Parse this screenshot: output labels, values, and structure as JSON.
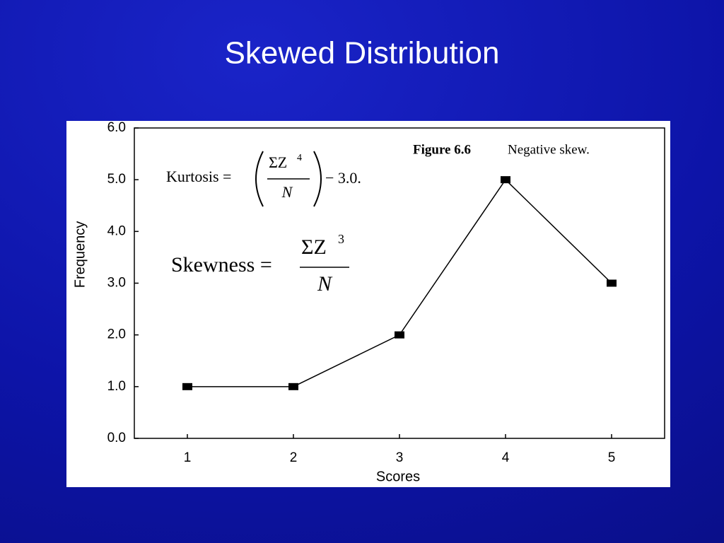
{
  "title": "Skewed Distribution",
  "chart_data": {
    "type": "line",
    "x": [
      1,
      2,
      3,
      4,
      5
    ],
    "values": [
      1,
      1,
      2,
      5,
      3
    ],
    "color": "#000000",
    "xlim": [
      0.5,
      5.5
    ],
    "xticks": [
      1,
      2,
      3,
      4,
      5
    ],
    "ylim": [
      0,
      6
    ],
    "yticks": [
      {
        "value": 0,
        "label": "0.0"
      },
      {
        "value": 1,
        "label": "1.0"
      },
      {
        "value": 2,
        "label": "2.0"
      },
      {
        "value": 3,
        "label": "3.0"
      },
      {
        "value": 4,
        "label": "4.0"
      },
      {
        "value": 5,
        "label": "5.0"
      },
      {
        "value": 6,
        "label": "6.0"
      }
    ],
    "x_label": "Scores",
    "y_label": "Frequency",
    "figure_label": "Figure 6.6",
    "figure_caption": "Negative skew.",
    "kurtosis": {
      "lhs": "Kurtosis =",
      "numerator": "ΣZ",
      "exponent": "4",
      "denominator": "N",
      "rhs": "− 3.0."
    },
    "skewness": {
      "lhs": "Skewness =",
      "numerator": "ΣZ",
      "exponent": "3",
      "denominator": "N"
    }
  }
}
